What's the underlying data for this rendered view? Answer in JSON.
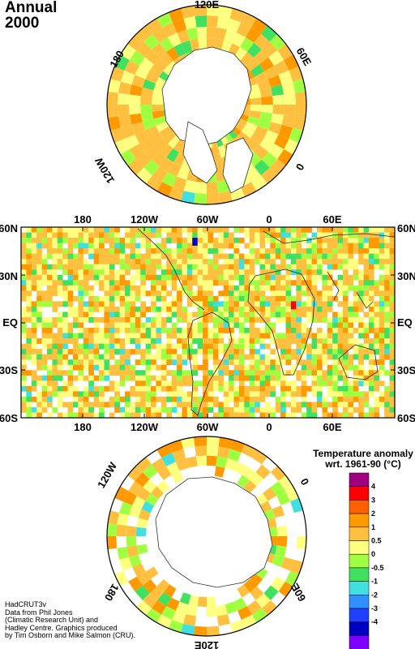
{
  "title": {
    "line1": "Annual",
    "line2": "2000"
  },
  "north_polar": {
    "labels": {
      "top": "120E",
      "right": "60E",
      "bottom_right": "0",
      "left": "180",
      "bottom_left": "120W"
    }
  },
  "map": {
    "top_labels": [
      "180",
      "120W",
      "60W",
      "0",
      "60E"
    ],
    "bottom_labels": [
      "180",
      "120W",
      "60W",
      "0",
      "60E"
    ],
    "left_labels": [
      "60N",
      "30N",
      "EQ",
      "30S",
      "60S"
    ],
    "right_labels": [
      "60N",
      "30N",
      "EQ",
      "30S",
      "60S"
    ]
  },
  "south_polar": {
    "labels": {
      "top_left": "120W",
      "right": "0",
      "left": "180",
      "bottom_right": "60E",
      "bottom": "120E"
    }
  },
  "legend": {
    "title_line1": "Temperature anomaly",
    "title_line2": "wrt. 1961-90  (°C)",
    "ticks": [
      "4",
      "3",
      "2",
      "1",
      "0.5",
      "0",
      "-0.5",
      "-1",
      "-2",
      "-3",
      "-4"
    ],
    "colors": [
      "#a00080",
      "#ff0000",
      "#ff6000",
      "#ff9900",
      "#ffc040",
      "#ffff80",
      "#a0ff40",
      "#40e060",
      "#40e0e0",
      "#3090ff",
      "#2040ff",
      "#0000c0",
      "#8000ff"
    ]
  },
  "footer": [
    "HadCRUT3v",
    "Data from Phil Jones",
    "(Climatic Research Unit) and",
    "Hadley Centre.  Graphics produced",
    "by Tim Osborn and Mike Salmon (CRU)."
  ]
}
